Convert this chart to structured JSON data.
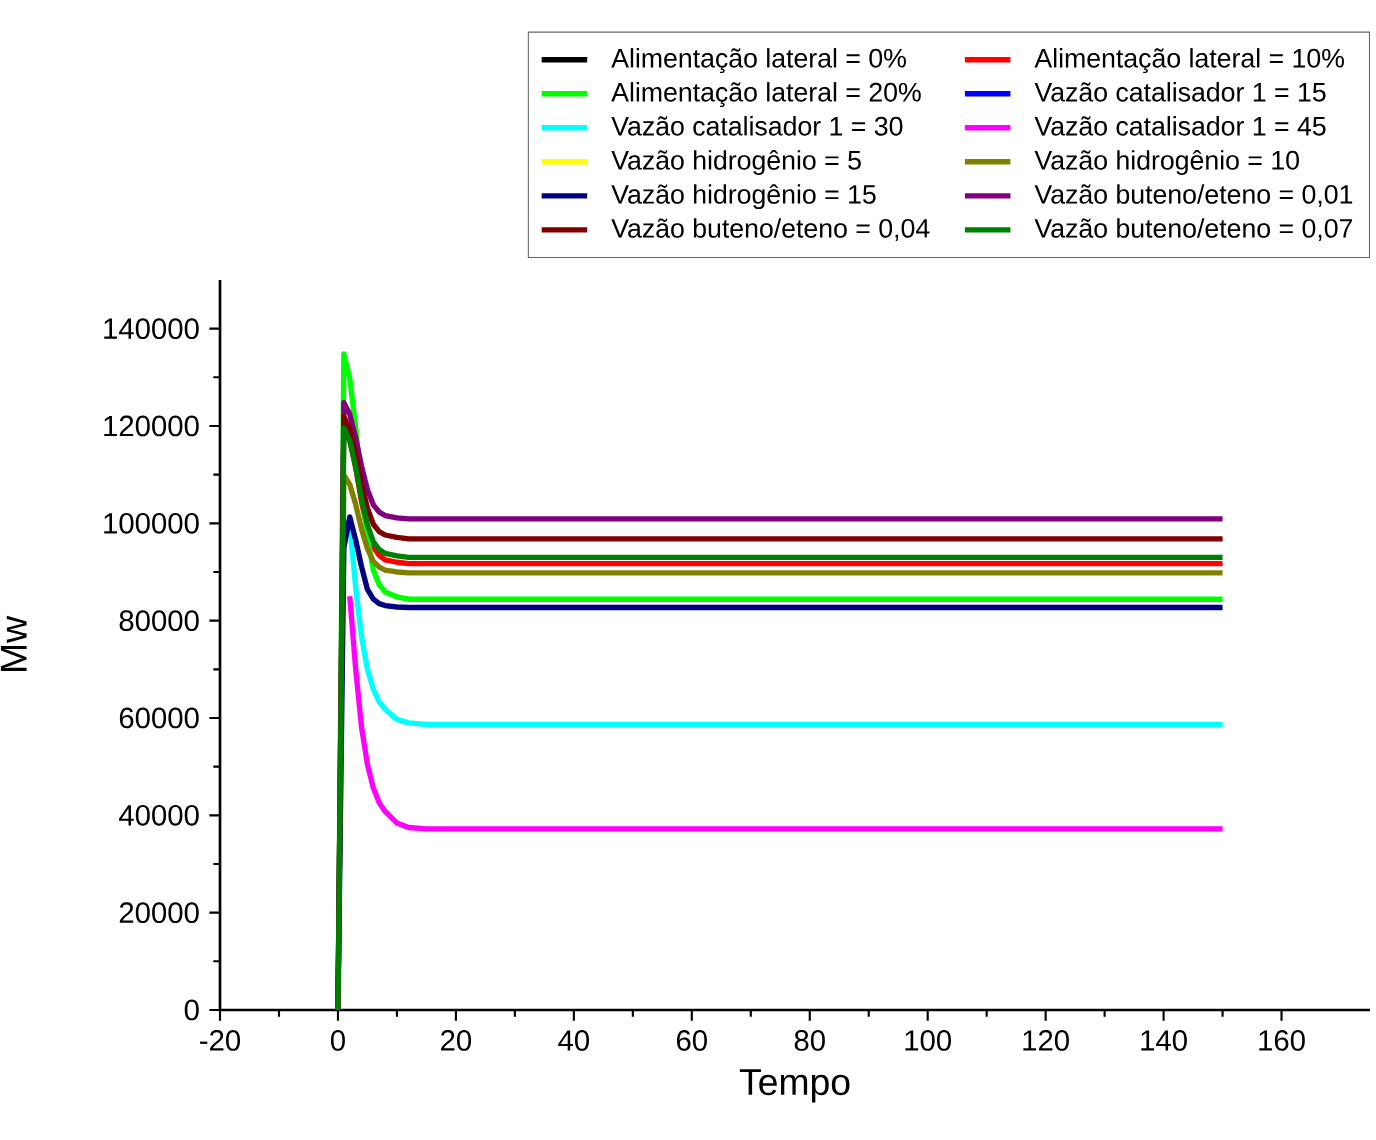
{
  "chart_data": {
    "type": "line",
    "xlabel": "Tempo",
    "ylabel": "Mw",
    "x": [
      0,
      1,
      2,
      3,
      4,
      5,
      6,
      7,
      8,
      10,
      12,
      15,
      20,
      150
    ],
    "xlim": [
      -20,
      175
    ],
    "xticks": [
      -20,
      0,
      20,
      40,
      60,
      80,
      100,
      120,
      140,
      160
    ],
    "ylim": [
      0,
      150000
    ],
    "yticks": [
      0,
      20000,
      40000,
      60000,
      80000,
      100000,
      120000,
      140000
    ],
    "legend": "top right",
    "series": [
      {
        "name": "Alimentação lateral = 0%",
        "color": "#000000",
        "values": [
          null,
          null,
          null,
          null,
          null,
          null,
          null,
          null,
          null,
          null,
          null,
          null,
          null,
          null
        ]
      },
      {
        "name": "Alimentação lateral = 10%",
        "color": "#ff0000",
        "values": [
          null,
          null,
          117200,
          111500,
          104400,
          98800,
          95100,
          93400,
          92500,
          92000,
          91700,
          91700,
          91700,
          91700
        ]
      },
      {
        "name": "Alimentação lateral = 20%",
        "color": "#00ff00",
        "values": [
          0,
          134800,
          129800,
          119700,
          107100,
          97000,
          90400,
          87400,
          85900,
          84900,
          84400,
          84400,
          84400,
          84400
        ]
      },
      {
        "name": "Vazão catalisador 1 = 15",
        "color": "#0000ff",
        "values": [
          null,
          null,
          null,
          null,
          null,
          null,
          null,
          null,
          null,
          null,
          null,
          null,
          null,
          null
        ]
      },
      {
        "name": "Vazão catalisador 1 = 30",
        "color": "#00ffff",
        "values": [
          null,
          null,
          99700,
          86900,
          76700,
          70000,
          65900,
          63300,
          61800,
          59700,
          59000,
          58700,
          58700,
          58700
        ]
      },
      {
        "name": "Vazão catalisador 1 = 45",
        "color": "#ff00ff",
        "values": [
          null,
          null,
          85000,
          70100,
          58100,
          50400,
          45600,
          42600,
          40800,
          38400,
          37500,
          37200,
          37200,
          37200
        ]
      },
      {
        "name": "Vazão hidrogênio = 5",
        "color": "#ffff00",
        "values": [
          null,
          null,
          null,
          null,
          null,
          null,
          null,
          null,
          null,
          null,
          null,
          null,
          null,
          null
        ]
      },
      {
        "name": "Vazão hidrogênio = 10",
        "color": "#808000",
        "values": [
          0,
          109900,
          108000,
          103900,
          98800,
          94800,
          92200,
          91000,
          90400,
          90000,
          89800,
          89800,
          89800,
          89800
        ]
      },
      {
        "name": "Vazão hidrogênio = 15",
        "color": "#000080",
        "values": [
          0,
          95000,
          101300,
          96600,
          91100,
          86400,
          84400,
          83500,
          83100,
          82800,
          82700,
          82700,
          82700,
          82700
        ]
      },
      {
        "name": "Vazão buteno/eteno = 0,01",
        "color": "#800080",
        "values": [
          0,
          124800,
          122400,
          117600,
          111700,
          106900,
          103800,
          102300,
          101600,
          101100,
          100900,
          100900,
          100900,
          100900
        ]
      },
      {
        "name": "Vazão buteno/eteno = 0,04",
        "color": "#800000",
        "values": [
          0,
          121900,
          119400,
          114400,
          108100,
          103100,
          99800,
          98300,
          97600,
          97100,
          96800,
          96800,
          96800,
          96800
        ]
      },
      {
        "name": "Vazão buteno/eteno = 0,07",
        "color": "#008000",
        "values": [
          0,
          119600,
          117000,
          111600,
          105000,
          99700,
          96200,
          94600,
          93800,
          93300,
          93000,
          93000,
          93000,
          93000
        ]
      }
    ]
  }
}
